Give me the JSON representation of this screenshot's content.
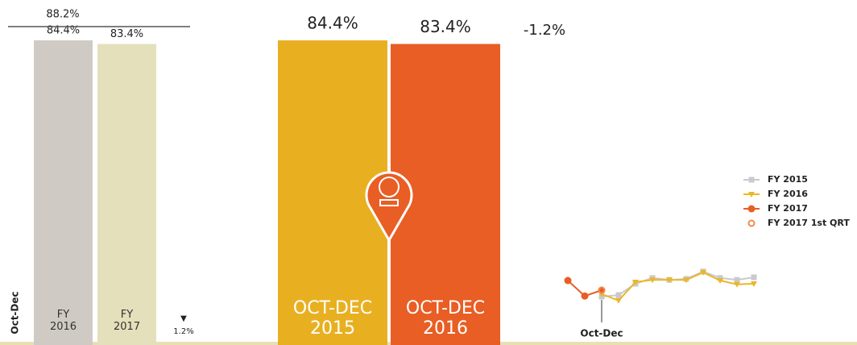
{
  "chart_data": [
    {
      "type": "bar",
      "categories": [
        "FY 2016",
        "FY 2017"
      ],
      "values": [
        84.4,
        83.4
      ],
      "value_labels": [
        "84.4%",
        "83.4%"
      ],
      "colors": [
        "#cfcbc4",
        "#e3e0bb"
      ],
      "ylim": [
        0,
        90
      ],
      "reference": {
        "value": 88.2,
        "label": "88.2%"
      },
      "axis_label": "Oct-Dec",
      "change": {
        "marker": "▼",
        "label": "1.2%"
      }
    },
    {
      "type": "bar",
      "categories": [
        "OCT-DEC 2015",
        "OCT-DEC 2016"
      ],
      "values": [
        84.4,
        83.4
      ],
      "value_labels": [
        "84.4%",
        "83.4%"
      ],
      "colors": [
        "#e8b021",
        "#e85e24"
      ],
      "ylim": [
        0,
        90
      ],
      "change_label": "-1.2%"
    },
    {
      "type": "line",
      "categories": [
        null,
        null,
        "Oct-Dec",
        null,
        null,
        null,
        null,
        null,
        null,
        null,
        null,
        null
      ],
      "ylim": [
        70,
        95
      ],
      "series": [
        {
          "name": "FY 2015",
          "color": "#c9c9cf",
          "marker": "square",
          "values": [
            null,
            null,
            81,
            81.5,
            85,
            86.8,
            86.2,
            86.5,
            88.8,
            86.8,
            86.2,
            87
          ]
        },
        {
          "name": "FY 2016",
          "color": "#eab72a",
          "marker": "triangle",
          "values": [
            null,
            null,
            81.8,
            79.8,
            85.5,
            86.2,
            86.2,
            86.2,
            88.5,
            86,
            84.8,
            85
          ]
        },
        {
          "name": "FY 2017",
          "color": "#e85e24",
          "marker": "circle",
          "values": [
            86,
            81.2,
            83,
            null,
            null,
            null,
            null,
            null,
            null,
            null,
            null,
            null
          ]
        },
        {
          "name": "FY 2017 1st QRT",
          "color": "#f08a4b",
          "marker": "ring",
          "values": [
            null,
            null,
            83,
            null,
            null,
            null,
            null,
            null,
            null,
            null,
            null,
            null
          ]
        }
      ]
    }
  ]
}
